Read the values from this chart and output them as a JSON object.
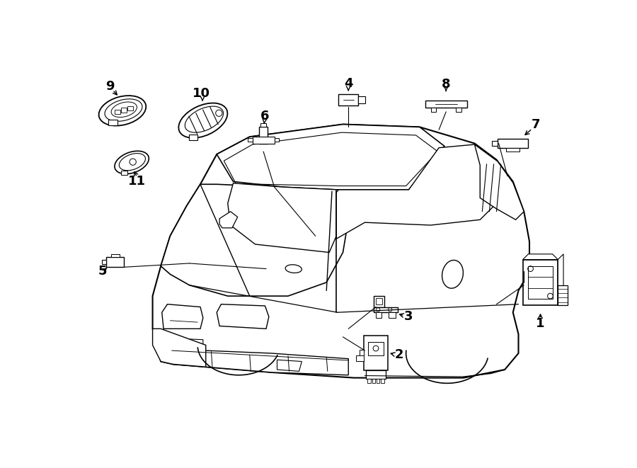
{
  "bg_color": "#ffffff",
  "line_color": "#000000",
  "text_color": "#000000",
  "fig_width": 9.0,
  "fig_height": 6.61
}
